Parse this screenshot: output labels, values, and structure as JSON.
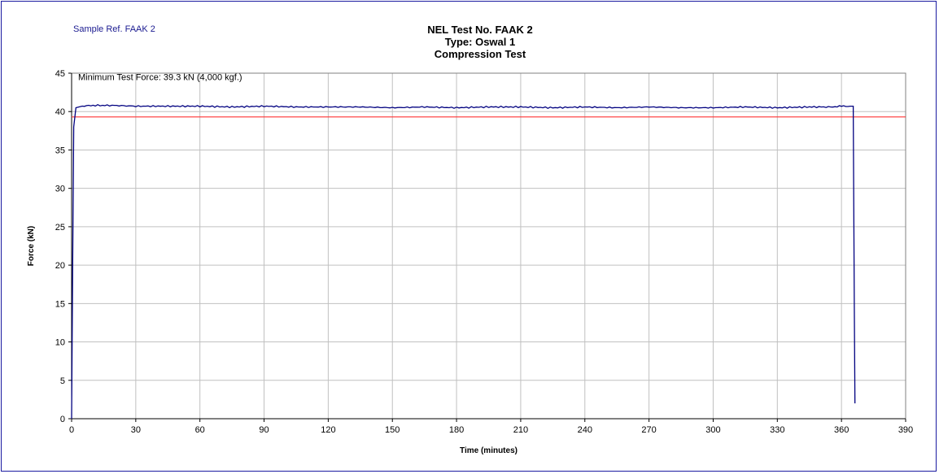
{
  "sample_ref": "Sample Ref. FAAK 2",
  "title_lines": [
    "NEL Test No. FAAK 2",
    "Type: Oswal 1",
    "Compression Test"
  ],
  "colors": {
    "series": "#000080",
    "threshold": "#ff3333",
    "grid": "#c0c0c0",
    "frame": "#1a1aa0"
  },
  "chart_data": {
    "type": "line",
    "title": "NEL Test No. FAAK 2 / Type: Oswal 1 / Compression Test",
    "xlabel": "Time (minutes)",
    "ylabel": "Force (kN)",
    "xlim": [
      0,
      390
    ],
    "ylim": [
      0,
      45
    ],
    "x_ticks": [
      "0",
      "30",
      "60",
      "90",
      "120",
      "150",
      "180",
      "210",
      "240",
      "270",
      "300",
      "330",
      "360",
      "390"
    ],
    "y_ticks": [
      "0",
      "5",
      "10",
      "15",
      "20",
      "25",
      "30",
      "35",
      "40",
      "45"
    ],
    "grid": true,
    "annotation": "Minimum Test Force: 39.3 kN (4,000 kgf.)",
    "threshold": {
      "y": 39.3
    },
    "series": [
      {
        "x": [
          0,
          0.5,
          1,
          2,
          5,
          10,
          20,
          30,
          45,
          60,
          75,
          90,
          105,
          120,
          135,
          150,
          165,
          180,
          195,
          210,
          225,
          240,
          255,
          270,
          285,
          300,
          315,
          330,
          345,
          355,
          360,
          364,
          365.5,
          366,
          366.3
        ],
        "y": [
          0,
          20,
          38,
          40.5,
          40.7,
          40.8,
          40.8,
          40.7,
          40.7,
          40.7,
          40.6,
          40.7,
          40.6,
          40.6,
          40.6,
          40.5,
          40.6,
          40.5,
          40.6,
          40.6,
          40.5,
          40.6,
          40.5,
          40.6,
          40.5,
          40.5,
          40.6,
          40.5,
          40.6,
          40.6,
          40.7,
          40.7,
          40.7,
          15,
          2
        ]
      }
    ]
  }
}
